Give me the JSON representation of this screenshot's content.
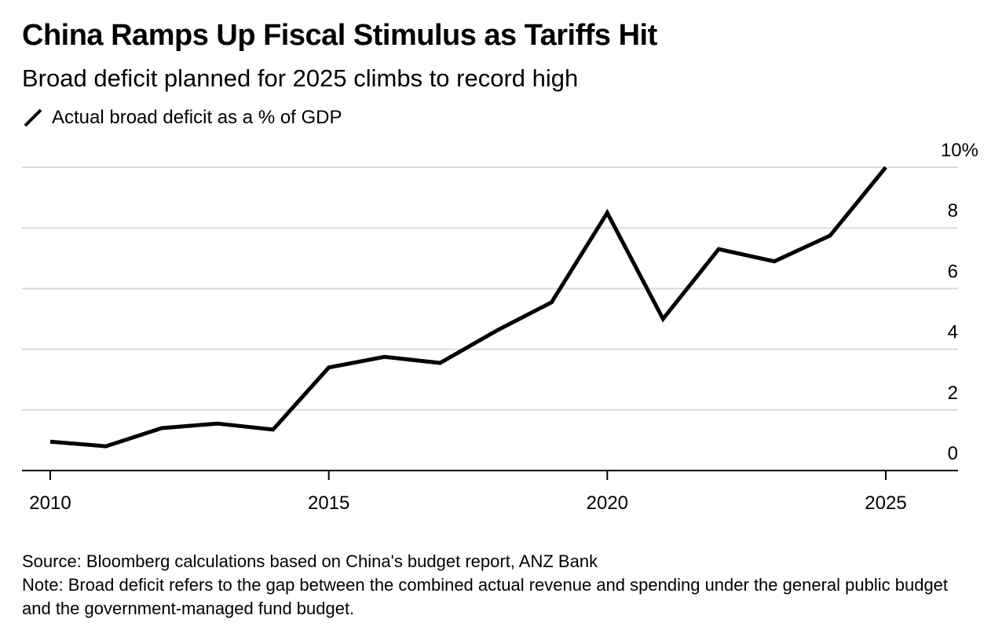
{
  "chart_data": {
    "type": "line",
    "title": "China Ramps Up Fiscal Stimulus as Tariffs Hit",
    "subtitle": "Broad deficit planned for 2025 climbs to record high",
    "x": [
      2010,
      2011,
      2012,
      2013,
      2014,
      2015,
      2016,
      2017,
      2018,
      2019,
      2020,
      2021,
      2022,
      2023,
      2024,
      2025
    ],
    "series": [
      {
        "name": "Actual broad deficit as a % of GDP",
        "color": "#000000",
        "values": [
          0.95,
          0.8,
          1.4,
          1.55,
          1.35,
          3.4,
          3.75,
          3.55,
          4.6,
          5.55,
          8.5,
          5.0,
          7.3,
          6.9,
          7.75,
          10.0
        ]
      }
    ],
    "xticks": [
      "2010",
      "2015",
      "2020",
      "2025"
    ],
    "yticks": [
      "0",
      "2",
      "4",
      "6",
      "8",
      "10%"
    ],
    "xlim": [
      2009.5,
      2026.25
    ],
    "ylim": [
      0,
      10
    ],
    "grid": true,
    "y_axis_position": "right",
    "legend_position": "top-left"
  },
  "footer": {
    "source": "Source: Bloomberg calculations based on China's budget report, ANZ Bank",
    "note": "Note: Broad deficit refers to the gap between the combined actual revenue and spending under the general public budget and the government-managed fund budget."
  },
  "colors": {
    "line": "#000000",
    "grid": "#d9d9d9",
    "axis": "#000000"
  }
}
